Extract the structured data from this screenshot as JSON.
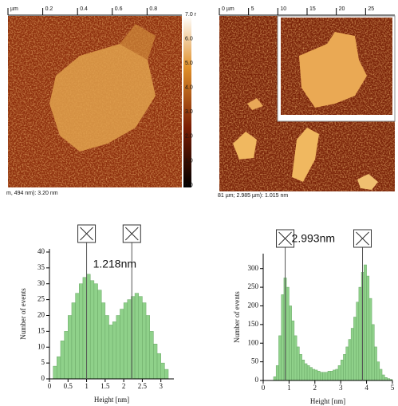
{
  "images": [
    {
      "ruler": [
        "µm",
        "0.2",
        "0.4",
        "0.6",
        "0.8"
      ],
      "caption": "m, 494 nm): 3.20 nm",
      "colorbar": [
        {
          "value": 0,
          "label": "0.0"
        },
        {
          "value": 1,
          "label": "1.0"
        },
        {
          "value": 2,
          "label": "2.0"
        },
        {
          "value": 3,
          "label": "3.0"
        },
        {
          "value": 4,
          "label": "4.0"
        },
        {
          "value": 5,
          "label": "5.0"
        },
        {
          "value": 6,
          "label": "6.0"
        },
        {
          "value": 7,
          "label": "7.0 r"
        }
      ]
    },
    {
      "ruler": [
        "0 µm",
        "5",
        "10",
        "15",
        "20",
        "25"
      ],
      "caption": "81 µm; 2.985 µm): 1.015 nm"
    }
  ],
  "chart_data": [
    {
      "type": "histogram",
      "xlabel": "Height [nm]",
      "ylabel": "Number of events",
      "annotation": "1.218nm",
      "color": "#8fd18a",
      "bins": [
        0.1,
        0.2,
        0.3,
        0.4,
        0.5,
        0.6,
        0.7,
        0.8,
        0.9,
        1.0,
        1.1,
        1.2,
        1.3,
        1.4,
        1.5,
        1.6,
        1.7,
        1.8,
        1.9,
        2.0,
        2.1,
        2.2,
        2.3,
        2.4,
        2.5,
        2.6,
        2.7,
        2.8,
        2.9,
        3.0,
        3.1,
        3.2
      ],
      "counts": [
        4,
        7,
        12,
        15,
        20,
        24,
        27,
        30,
        32,
        33,
        31,
        30,
        28,
        24,
        20,
        17,
        18,
        20,
        22,
        24,
        25,
        26,
        27,
        26,
        24,
        20,
        15,
        11,
        8,
        5,
        3
      ],
      "cursors": [
        1.0,
        2.218
      ],
      "xlim": [
        0,
        3.35
      ],
      "xticks": [
        0,
        0.5,
        1,
        1.5,
        2,
        2.5,
        3
      ],
      "ylim": [
        0,
        41
      ],
      "yticks": [
        0,
        5,
        10,
        15,
        20,
        25,
        30,
        35,
        40
      ]
    },
    {
      "type": "histogram",
      "xlabel": "Height [nm]",
      "ylabel": "Number of events",
      "annotation": "2.993nm",
      "color": "#8fd18a",
      "bins": [
        0.4,
        0.5,
        0.6,
        0.7,
        0.8,
        0.9,
        1.0,
        1.1,
        1.2,
        1.3,
        1.4,
        1.5,
        1.6,
        1.7,
        1.8,
        1.9,
        2.0,
        2.1,
        2.2,
        2.3,
        2.4,
        2.5,
        2.6,
        2.7,
        2.8,
        2.9,
        3.0,
        3.1,
        3.2,
        3.3,
        3.4,
        3.5,
        3.6,
        3.7,
        3.8,
        3.9,
        4.0,
        4.1,
        4.2,
        4.3,
        4.4,
        4.5,
        4.6,
        4.7,
        4.8,
        4.9,
        5.0
      ],
      "counts": [
        10,
        40,
        120,
        230,
        275,
        250,
        200,
        160,
        120,
        90,
        70,
        55,
        45,
        40,
        35,
        30,
        28,
        25,
        22,
        22,
        22,
        25,
        25,
        28,
        30,
        40,
        55,
        70,
        90,
        110,
        140,
        170,
        210,
        250,
        290,
        310,
        280,
        220,
        150,
        90,
        50,
        30,
        15,
        8,
        5,
        3
      ],
      "cursors": [
        0.85,
        3.843
      ],
      "xlim": [
        0,
        5
      ],
      "xticks": [
        0,
        1,
        2,
        3,
        4,
        5
      ],
      "ylim": [
        0,
        340
      ],
      "yticks": [
        0,
        50,
        100,
        150,
        200,
        250,
        300
      ]
    }
  ]
}
